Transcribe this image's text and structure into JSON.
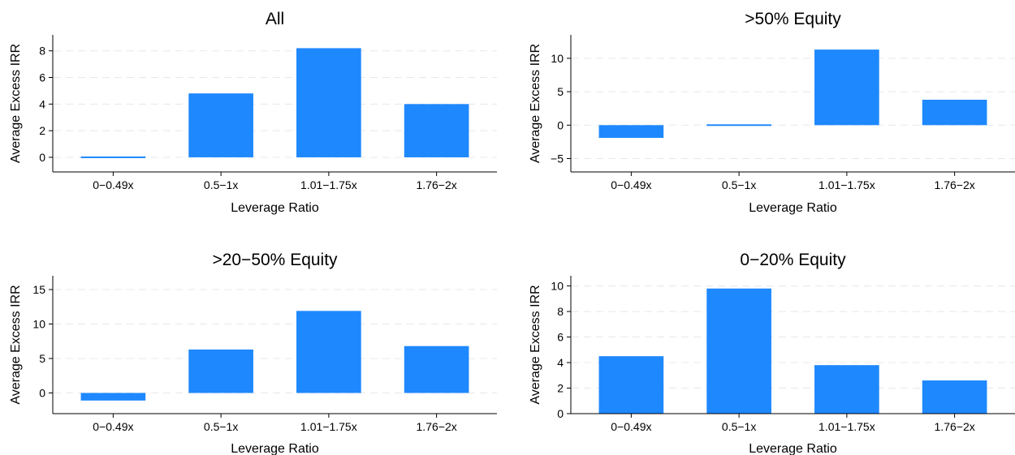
{
  "chart_data": [
    {
      "type": "bar",
      "title": "All",
      "xlabel": "Leverage Ratio",
      "ylabel": "Average Excess IRR",
      "categories": [
        "0−0.49x",
        "0.5−1x",
        "1.01−1.75x",
        "1.76−2x"
      ],
      "values": [
        0.0,
        4.8,
        8.2,
        4.0
      ],
      "ylim": [
        -1.1,
        9.2
      ],
      "yticks": [
        0,
        2,
        4,
        6,
        8
      ],
      "ytick_labels": [
        "0",
        "2",
        "4",
        "6",
        "8"
      ],
      "grid": true,
      "bar_color": "#1e88ff"
    },
    {
      "type": "bar",
      "title": ">50% Equity",
      "xlabel": "Leverage Ratio",
      "ylabel": "Average Excess IRR",
      "categories": [
        "0−0.49x",
        "0.5−1x",
        "1.01−1.75x",
        "1.76−2x"
      ],
      "values": [
        -1.9,
        -0.1,
        11.3,
        3.8
      ],
      "ylim": [
        -7.0,
        13.5
      ],
      "yticks": [
        -5,
        0,
        5,
        10
      ],
      "ytick_labels": [
        "−5",
        "0",
        "5",
        "10"
      ],
      "grid": true,
      "bar_color": "#1e88ff"
    },
    {
      "type": "bar",
      "title": ">20−50% Equity",
      "xlabel": "Leverage Ratio",
      "ylabel": "Average Excess IRR",
      "categories": [
        "0−0.49x",
        "0.5−1x",
        "1.01−1.75x",
        "1.76−2x"
      ],
      "values": [
        -1.1,
        6.3,
        11.9,
        6.8
      ],
      "ylim": [
        -3.0,
        17.0
      ],
      "yticks": [
        0,
        5,
        10,
        15
      ],
      "ytick_labels": [
        "0",
        "5",
        "10",
        "15"
      ],
      "grid": true,
      "bar_color": "#1e88ff"
    },
    {
      "type": "bar",
      "title": "0−20% Equity",
      "xlabel": "Leverage Ratio",
      "ylabel": "Average Excess IRR",
      "categories": [
        "0−0.49x",
        "0.5−1x",
        "1.01−1.75x",
        "1.76−2x"
      ],
      "values": [
        4.5,
        9.8,
        3.8,
        2.6
      ],
      "ylim": [
        0,
        10.8
      ],
      "yticks": [
        0,
        2,
        4,
        6,
        8,
        10
      ],
      "ytick_labels": [
        "0",
        "2",
        "4",
        "6",
        "8",
        "10"
      ],
      "grid": true,
      "bar_color": "#1e88ff"
    }
  ]
}
